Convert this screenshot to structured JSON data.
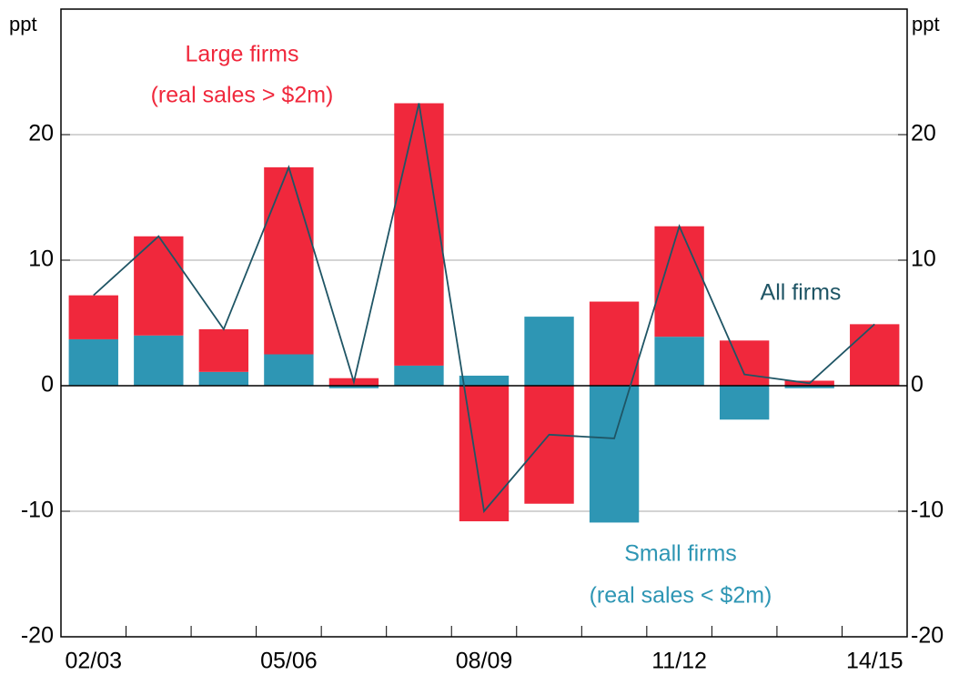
{
  "chart_data": {
    "type": "bar",
    "stacked": true,
    "y_label": "ppt",
    "y2_label": "ppt",
    "categories": [
      "02/03",
      null,
      null,
      "05/06",
      null,
      null,
      "08/09",
      null,
      null,
      "11/12",
      null,
      null,
      "14/15"
    ],
    "series": [
      {
        "name": "Small firms",
        "color": "#2e96b4",
        "type": "bar",
        "values": [
          3.7,
          4.0,
          1.1,
          2.5,
          -0.2,
          1.6,
          0.8,
          5.5,
          -10.9,
          3.9,
          -2.7,
          -0.2,
          0
        ]
      },
      {
        "name": "Large firms",
        "color": "#f0283c",
        "type": "bar",
        "values": [
          3.5,
          7.9,
          3.4,
          14.9,
          0.6,
          20.9,
          -10.8,
          -9.4,
          6.7,
          8.8,
          3.6,
          0.4,
          4.9
        ]
      },
      {
        "name": "All firms",
        "color": "#1f5565",
        "type": "line",
        "values": [
          7.2,
          11.9,
          4.5,
          17.4,
          0.3,
          22.5,
          -10.0,
          -3.9,
          -4.2,
          12.7,
          0.9,
          0.2,
          4.9
        ]
      }
    ],
    "annotations": [
      "(real sales > $2m)",
      "(real sales < $2m)"
    ],
    "ylim": [
      -20,
      30
    ],
    "yticks": [
      -20,
      -10,
      0,
      10,
      20
    ],
    "y2lim": [
      -20,
      30
    ],
    "y2ticks": [
      -20,
      -10,
      0,
      10,
      20
    ],
    "grid": true
  }
}
